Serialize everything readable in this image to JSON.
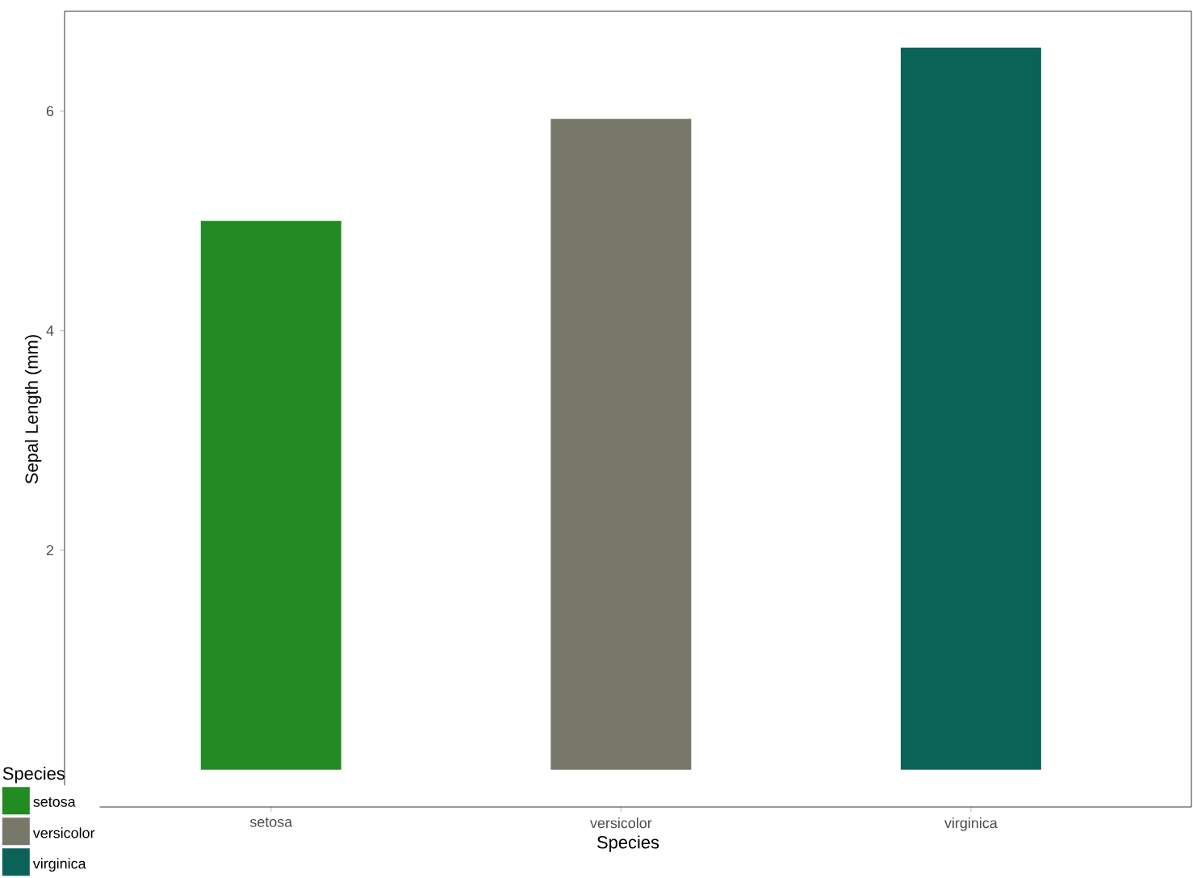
{
  "chart_data": {
    "type": "bar",
    "xlabel": "Species",
    "ylabel": "Sepal Length (mm)",
    "legend_title": "Species",
    "categories": [
      "setosa",
      "versicolor",
      "virginica"
    ],
    "series": [
      {
        "name": "setosa",
        "color": "#228b22",
        "values": [
          5.0,
          null,
          null
        ]
      },
      {
        "name": "versicolor",
        "color": "#77786a",
        "values": [
          null,
          5.93,
          null
        ]
      },
      {
        "name": "virginica",
        "color": "#0b6358",
        "values": [
          null,
          null,
          6.58
        ]
      }
    ],
    "ylim": [
      -0.34,
      6.91
    ],
    "yticks": [
      2,
      4,
      6
    ],
    "grid": false,
    "legend": "bottom left"
  }
}
